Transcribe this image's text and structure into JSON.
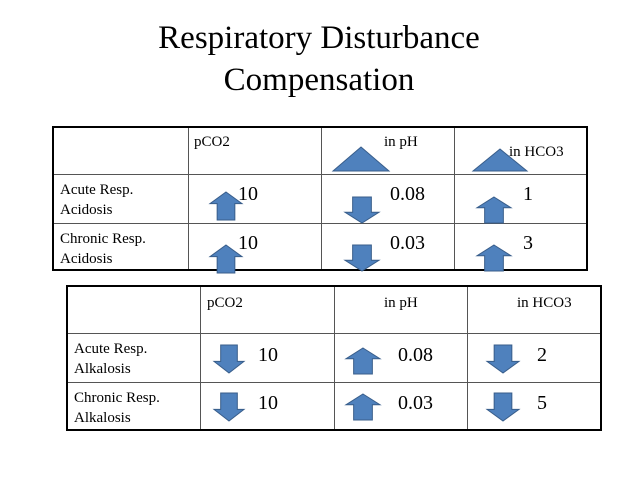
{
  "title_line1": "Respiratory Disturbance",
  "title_line2": "Compensation",
  "colors": {
    "arrow_fill": "#4F81BD",
    "arrow_stroke": "#385D8A",
    "border": "#000000"
  },
  "table1": {
    "headers": {
      "col1": "pCO2",
      "col2": "in pH",
      "col3": "in HCO3"
    },
    "header_icons": {
      "col2": "triangle-up-icon",
      "col3": "triangle-up-icon"
    },
    "rows": [
      {
        "line1": "Acute Resp.",
        "line2": "Acidosis",
        "pco2": "10",
        "pco2_dir": "up",
        "ph": "0.08",
        "ph_dir": "down",
        "hco3": "1",
        "hco3_dir": "up"
      },
      {
        "line1": "Chronic Resp.",
        "line2": "Acidosis",
        "pco2": "10",
        "pco2_dir": "up",
        "ph": "0.03",
        "ph_dir": "down",
        "hco3": "3",
        "hco3_dir": "up"
      }
    ]
  },
  "table2": {
    "headers": {
      "col1": "pCO2",
      "col2": "in pH",
      "col3": "in HCO3"
    },
    "rows": [
      {
        "line1": "Acute Resp.",
        "line2": "Alkalosis",
        "pco2": "10",
        "pco2_dir": "down",
        "ph": "0.08",
        "ph_dir": "up",
        "hco3": "2",
        "hco3_dir": "down"
      },
      {
        "line1": "Chronic Resp.",
        "line2": "Alkalosis",
        "pco2": "10",
        "pco2_dir": "down",
        "ph": "0.03",
        "ph_dir": "up",
        "hco3": "5",
        "hco3_dir": "down"
      }
    ]
  }
}
